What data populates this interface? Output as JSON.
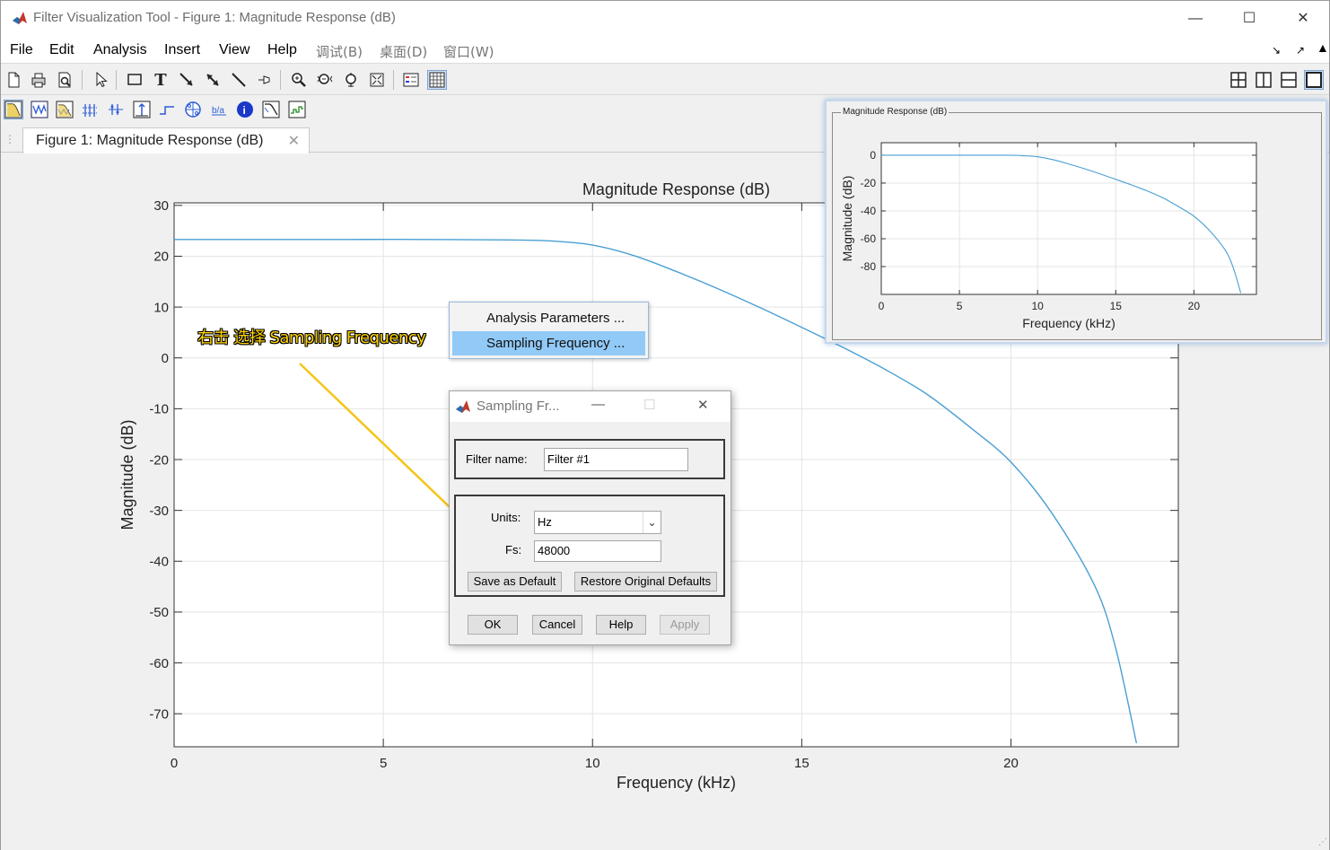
{
  "window": {
    "title": "Filter Visualization Tool - Figure 1: Magnitude Response (dB)",
    "min_glyph": "—",
    "max_glyph": "☐",
    "close_glyph": "✕"
  },
  "menu": {
    "items": [
      "File",
      "Edit",
      "Analysis",
      "Insert",
      "View",
      "Help",
      "调试(B)",
      "桌面(D)",
      "窗口(W)"
    ],
    "right_icons": [
      "↘",
      "↗"
    ]
  },
  "tab": {
    "label": "Figure 1: Magnitude Response (dB)",
    "close_glyph": "✕"
  },
  "context_menu": {
    "items": [
      "Analysis Parameters ...",
      "Sampling Frequency ..."
    ],
    "selected_index": 1
  },
  "annotation": {
    "text": "右击 选择 Sampling Frequency",
    "color": "#ffd300"
  },
  "dialog": {
    "title": "Sampling Fr...",
    "filter_name_label": "Filter name:",
    "filter_name_value": "Filter #1",
    "units_label": "Units:",
    "units_value": "Hz",
    "fs_label": "Fs:",
    "fs_value": "48000",
    "save_default_label": "Save as Default",
    "restore_defaults_label": "Restore Original Defaults",
    "ok_label": "OK",
    "cancel_label": "Cancel",
    "help_label": "Help",
    "apply_label": "Apply"
  },
  "preview": {
    "frame_title": "Magnitude Response (dB)"
  },
  "chart_data": [
    {
      "type": "line",
      "title": "Magnitude Response (dB)",
      "xlabel": "Frequency (kHz)",
      "ylabel": "Magnitude (dB)",
      "xlim": [
        0,
        24
      ],
      "ylim": [
        -76.5,
        30.5
      ],
      "xticks": [
        0,
        5,
        10,
        15,
        20
      ],
      "yticks": [
        30,
        20,
        10,
        0,
        -10,
        -20,
        -30,
        -40,
        -50,
        -60,
        -70
      ],
      "grid": true,
      "line_color": "#4a9fd4",
      "x": [
        0,
        2,
        4,
        6,
        8,
        9,
        10,
        11,
        12,
        13,
        14,
        15,
        16,
        17,
        18,
        19,
        20,
        21,
        22,
        22.5,
        23
      ],
      "y": [
        23.3,
        23.3,
        23.3,
        23.3,
        23.2,
        23.0,
        22.2,
        20.1,
        17.0,
        13.6,
        9.9,
        6.0,
        2.0,
        -2.3,
        -7.2,
        -13.5,
        -20.5,
        -30.8,
        -44.8,
        -57.0,
        -75.8
      ]
    },
    {
      "type": "line",
      "title": "",
      "xlabel": "Frequency (kHz)",
      "ylabel": "Magnitude (dB)",
      "xlim": [
        0,
        24
      ],
      "ylim": [
        -100,
        9
      ],
      "xticks": [
        0,
        5,
        10,
        15,
        20
      ],
      "yticks": [
        0,
        -20,
        -40,
        -60,
        -80
      ],
      "grid": true,
      "line_color": "#4a9fd4",
      "x": [
        0,
        4,
        8,
        9,
        10,
        11,
        12,
        13,
        14,
        15,
        16,
        17,
        18,
        19,
        20,
        21,
        22,
        22.5,
        23
      ],
      "y": [
        0,
        0,
        0,
        -0.3,
        -1.1,
        -3.2,
        -6.3,
        -9.7,
        -13.4,
        -17.3,
        -21.3,
        -25.6,
        -30.5,
        -36.8,
        -43.8,
        -54.1,
        -68.1,
        -80.3,
        -99
      ]
    }
  ]
}
